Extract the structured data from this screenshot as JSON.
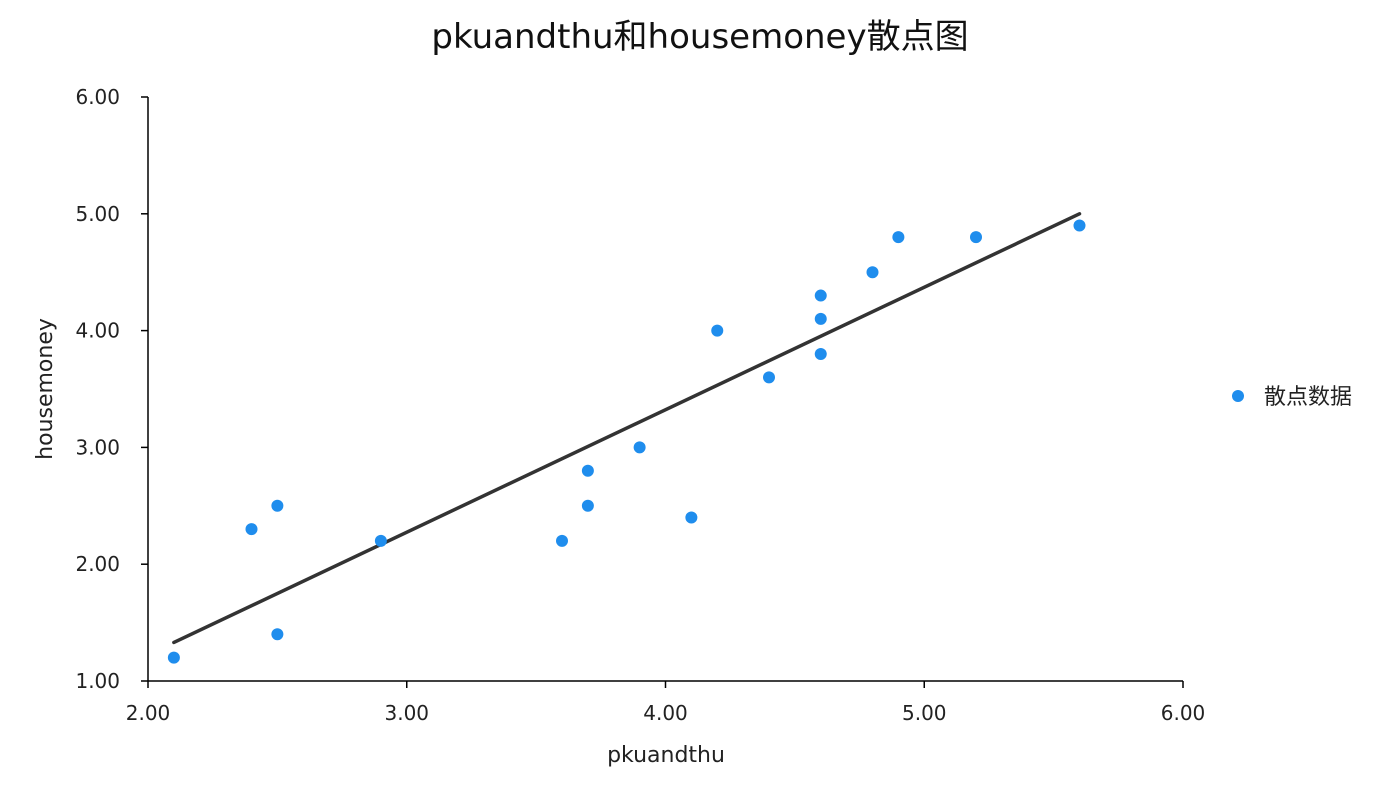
{
  "chart_data": {
    "type": "scatter",
    "title": "pkuandthu和housemoney散点图",
    "xlabel": "pkuandthu",
    "ylabel": "housemoney",
    "xlim": [
      2.0,
      6.0
    ],
    "ylim": [
      1.0,
      6.0
    ],
    "xticks": [
      "2.00",
      "3.00",
      "4.00",
      "5.00",
      "6.00"
    ],
    "yticks": [
      "1.00",
      "2.00",
      "3.00",
      "4.00",
      "5.00",
      "6.00"
    ],
    "grid": false,
    "legend_position": "right",
    "series": [
      {
        "name": "散点数据",
        "color": "#1f8ded",
        "points": [
          {
            "x": 2.1,
            "y": 1.2
          },
          {
            "x": 2.4,
            "y": 2.3
          },
          {
            "x": 2.5,
            "y": 2.5
          },
          {
            "x": 2.5,
            "y": 1.4
          },
          {
            "x": 2.9,
            "y": 2.2
          },
          {
            "x": 3.6,
            "y": 2.2
          },
          {
            "x": 3.7,
            "y": 2.8
          },
          {
            "x": 3.7,
            "y": 2.5
          },
          {
            "x": 3.9,
            "y": 3.0
          },
          {
            "x": 4.1,
            "y": 2.4
          },
          {
            "x": 4.2,
            "y": 4.0
          },
          {
            "x": 4.4,
            "y": 3.6
          },
          {
            "x": 4.6,
            "y": 4.3
          },
          {
            "x": 4.6,
            "y": 4.1
          },
          {
            "x": 4.6,
            "y": 3.8
          },
          {
            "x": 4.8,
            "y": 4.5
          },
          {
            "x": 4.9,
            "y": 4.8
          },
          {
            "x": 5.2,
            "y": 4.8
          },
          {
            "x": 5.6,
            "y": 4.9
          }
        ]
      }
    ],
    "trendline": {
      "color": "#333333",
      "start": {
        "x": 2.1,
        "y": 1.33
      },
      "end": {
        "x": 5.6,
        "y": 5.0
      }
    }
  }
}
